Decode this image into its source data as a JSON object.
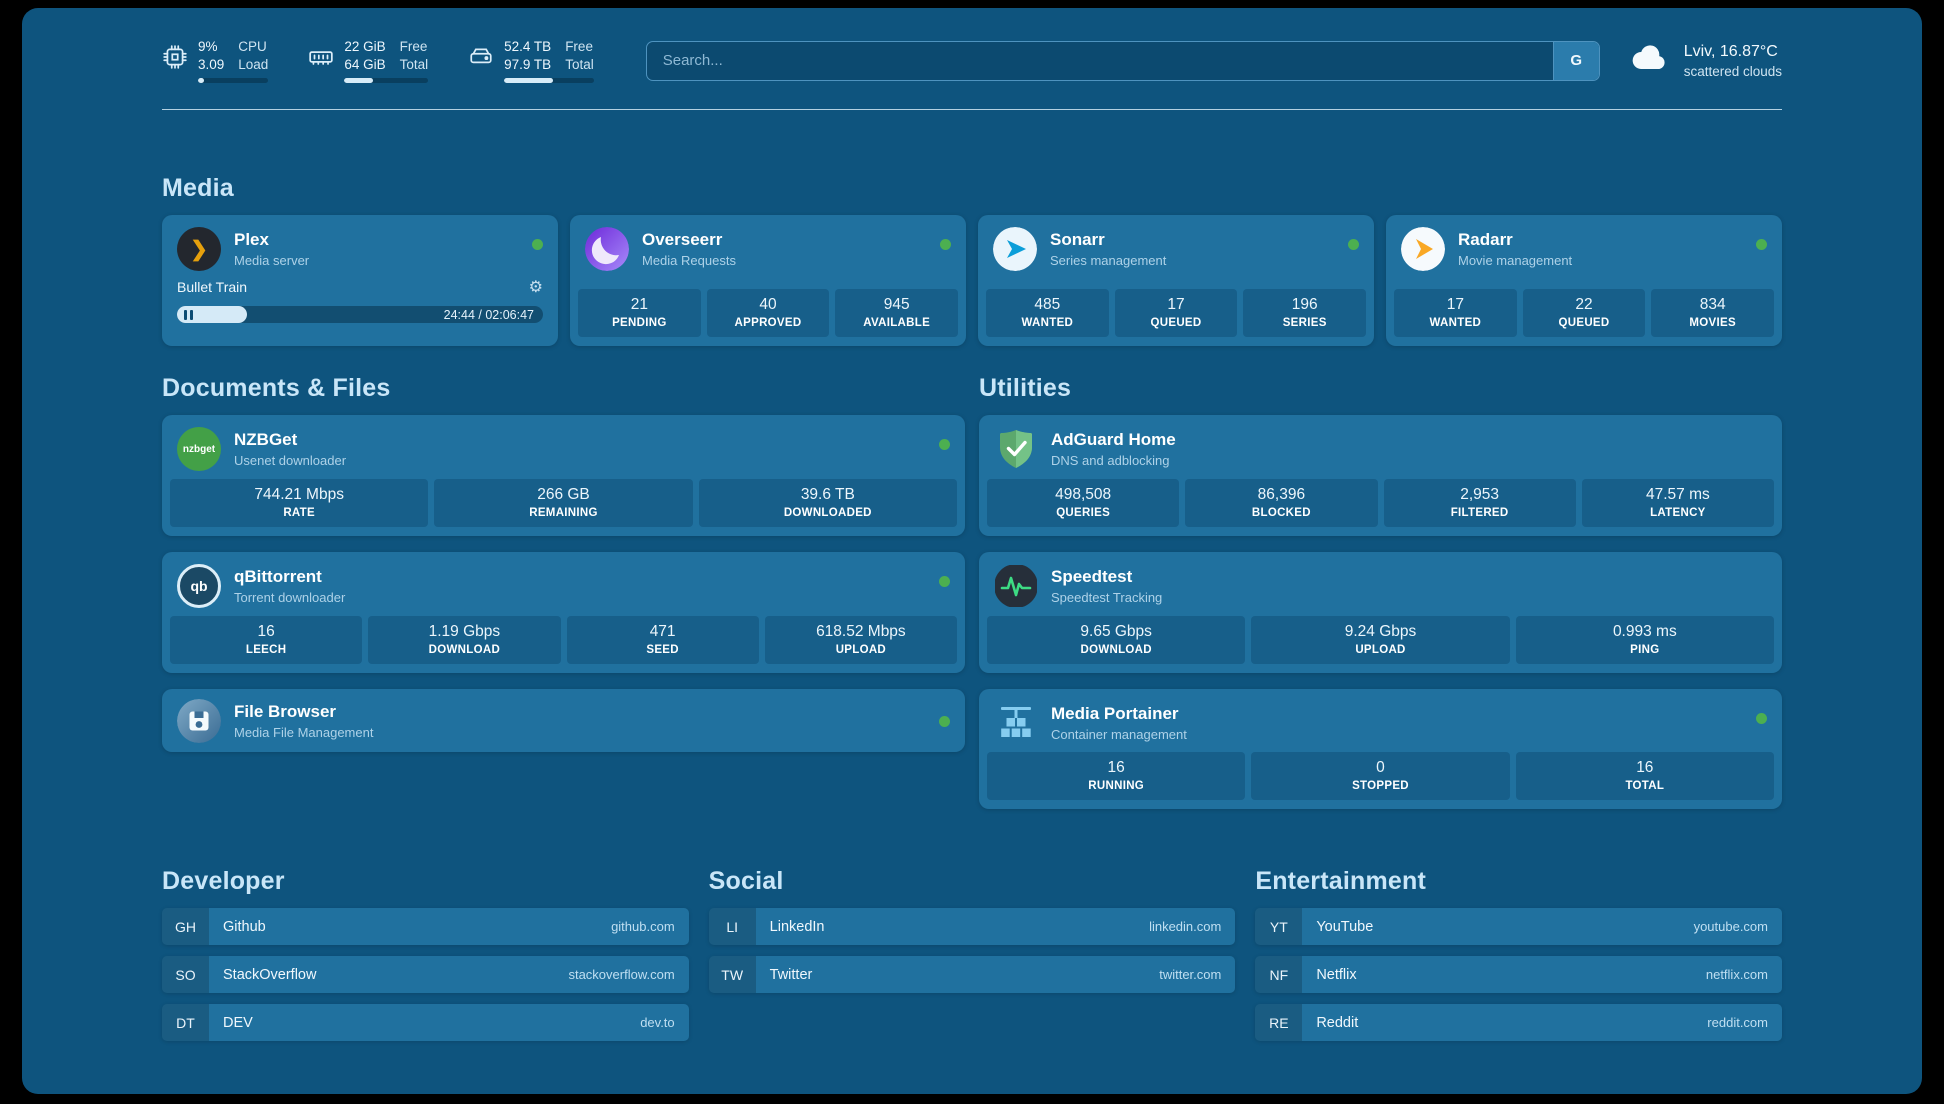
{
  "topbar": {
    "metrics": [
      {
        "id": "cpu",
        "values": [
          "9%",
          "3.09"
        ],
        "labels": [
          "CPU",
          "Load"
        ],
        "progress": 9
      },
      {
        "id": "ram",
        "values": [
          "22 GiB",
          "64 GiB"
        ],
        "labels": [
          "Free",
          "Total"
        ],
        "progress": 34
      },
      {
        "id": "disk",
        "values": [
          "52.4 TB",
          "97.9 TB"
        ],
        "labels": [
          "Free",
          "Total"
        ],
        "progress": 54
      }
    ],
    "search": {
      "placeholder": "Search...",
      "engine_label": "G"
    },
    "weather": {
      "location": "Lviv, 16.87°C",
      "condition": "scattered clouds"
    }
  },
  "sections": {
    "media": "Media",
    "documents": "Documents & Files",
    "utilities": "Utilities"
  },
  "services": {
    "plex": {
      "title": "Plex",
      "subtitle": "Media server",
      "now_playing": "Bullet Train",
      "time_display": "24:44 / 02:06:47",
      "progress": 19,
      "icon_glyph": "❯"
    },
    "overseerr": {
      "title": "Overseerr",
      "subtitle": "Media Requests",
      "stats": [
        {
          "value": "21",
          "label": "PENDING"
        },
        {
          "value": "40",
          "label": "APPROVED"
        },
        {
          "value": "945",
          "label": "AVAILABLE"
        }
      ]
    },
    "sonarr": {
      "title": "Sonarr",
      "subtitle": "Series management",
      "stats": [
        {
          "value": "485",
          "label": "WANTED"
        },
        {
          "value": "17",
          "label": "QUEUED"
        },
        {
          "value": "196",
          "label": "SERIES"
        }
      ]
    },
    "radarr": {
      "title": "Radarr",
      "subtitle": "Movie management",
      "stats": [
        {
          "value": "17",
          "label": "WANTED"
        },
        {
          "value": "22",
          "label": "QUEUED"
        },
        {
          "value": "834",
          "label": "MOVIES"
        }
      ]
    },
    "nzbget": {
      "title": "NZBGet",
      "subtitle": "Usenet downloader",
      "icon_glyph": "nzbget",
      "stats": [
        {
          "value": "744.21 Mbps",
          "label": "RATE"
        },
        {
          "value": "266 GB",
          "label": "REMAINING"
        },
        {
          "value": "39.6 TB",
          "label": "DOWNLOADED"
        }
      ]
    },
    "qbittorrent": {
      "title": "qBittorrent",
      "subtitle": "Torrent downloader",
      "icon_glyph": "qb",
      "stats": [
        {
          "value": "16",
          "label": "LEECH"
        },
        {
          "value": "1.19 Gbps",
          "label": "DOWNLOAD"
        },
        {
          "value": "471",
          "label": "SEED"
        },
        {
          "value": "618.52 Mbps",
          "label": "UPLOAD"
        }
      ]
    },
    "filebrowser": {
      "title": "File Browser",
      "subtitle": "Media File Management"
    },
    "adguard": {
      "title": "AdGuard Home",
      "subtitle": "DNS and adblocking",
      "stats": [
        {
          "value": "498,508",
          "label": "QUERIES"
        },
        {
          "value": "86,396",
          "label": "BLOCKED"
        },
        {
          "value": "2,953",
          "label": "FILTERED"
        },
        {
          "value": "47.57 ms",
          "label": "LATENCY"
        }
      ]
    },
    "speedtest": {
      "title": "Speedtest",
      "subtitle": "Speedtest Tracking",
      "stats": [
        {
          "value": "9.65 Gbps",
          "label": "DOWNLOAD"
        },
        {
          "value": "9.24 Gbps",
          "label": "UPLOAD"
        },
        {
          "value": "0.993 ms",
          "label": "PING"
        }
      ]
    },
    "portainer": {
      "title": "Media Portainer",
      "subtitle": "Container management",
      "stats": [
        {
          "value": "16",
          "label": "RUNNING"
        },
        {
          "value": "0",
          "label": "STOPPED"
        },
        {
          "value": "16",
          "label": "TOTAL"
        }
      ]
    }
  },
  "bookmarks": [
    {
      "title": "Developer",
      "items": [
        {
          "abbr": "GH",
          "name": "Github",
          "domain": "github.com"
        },
        {
          "abbr": "SO",
          "name": "StackOverflow",
          "domain": "stackoverflow.com"
        },
        {
          "abbr": "DT",
          "name": "DEV",
          "domain": "dev.to"
        }
      ]
    },
    {
      "title": "Social",
      "items": [
        {
          "abbr": "LI",
          "name": "LinkedIn",
          "domain": "linkedin.com"
        },
        {
          "abbr": "TW",
          "name": "Twitter",
          "domain": "twitter.com"
        }
      ]
    },
    {
      "title": "Entertainment",
      "items": [
        {
          "abbr": "YT",
          "name": "YouTube",
          "domain": "youtube.com"
        },
        {
          "abbr": "NF",
          "name": "Netflix",
          "domain": "netflix.com"
        },
        {
          "abbr": "RE",
          "name": "Reddit",
          "domain": "reddit.com"
        }
      ]
    }
  ],
  "colors": {
    "background": "#0e547e",
    "card": "#20719f",
    "stat_box": "#175f8a",
    "section_title": "#c9e6f8",
    "status_green": "#4caf50",
    "plex_amber": "#e5a00d"
  }
}
